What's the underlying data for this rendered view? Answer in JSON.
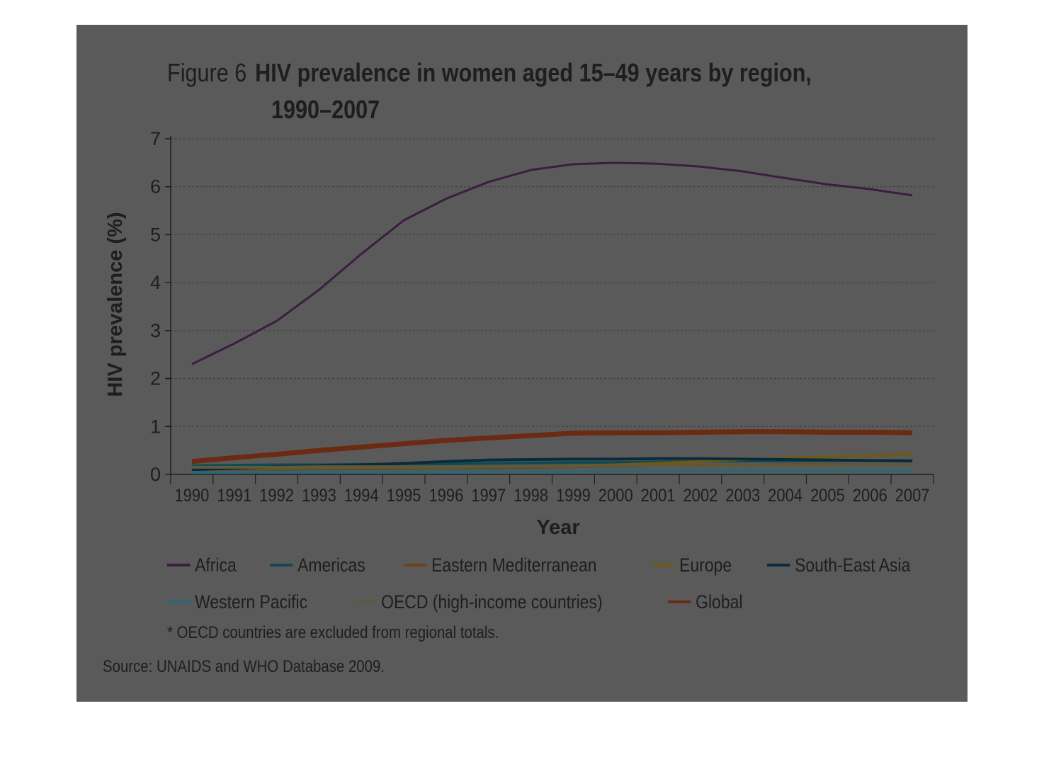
{
  "chart_data": {
    "type": "line",
    "figure_label": "Figure 6",
    "title_line1": "HIV prevalence in women aged 15–49 years by region,",
    "title_line2": "1990–2007",
    "xlabel": "Year",
    "ylabel": "HIV prevalence (%)",
    "ylim": [
      0,
      7
    ],
    "yticks": [
      "0",
      "1",
      "2",
      "3",
      "4",
      "5",
      "6",
      "7"
    ],
    "x": [
      "1990",
      "1991",
      "1992",
      "1993",
      "1994",
      "1995",
      "1996",
      "1997",
      "1998",
      "1999",
      "2000",
      "2001",
      "2002",
      "2003",
      "2004",
      "2005",
      "2006",
      "2007"
    ],
    "grid": true,
    "legend_placement": "bottom",
    "series": [
      {
        "name": "Africa",
        "color": "#3b1d40",
        "values": [
          2.3,
          2.73,
          3.2,
          3.85,
          4.6,
          5.3,
          5.75,
          6.1,
          6.35,
          6.47,
          6.5,
          6.48,
          6.42,
          6.32,
          6.18,
          6.05,
          5.95,
          5.82
        ]
      },
      {
        "name": "Americas",
        "color": "#0d4c52",
        "values": [
          0.18,
          0.19,
          0.2,
          0.2,
          0.21,
          0.21,
          0.22,
          0.23,
          0.24,
          0.25,
          0.25,
          0.26,
          0.27,
          0.28,
          0.28,
          0.29,
          0.29,
          0.29
        ]
      },
      {
        "name": "Eastern Mediterranean",
        "color": "#6b4418",
        "values": [
          0.1,
          0.11,
          0.11,
          0.12,
          0.12,
          0.13,
          0.14,
          0.14,
          0.15,
          0.16,
          0.17,
          0.18,
          0.19,
          0.19,
          0.2,
          0.2,
          0.2,
          0.2
        ]
      },
      {
        "name": "Europe",
        "color": "#6b5a18",
        "values": [
          0.12,
          0.13,
          0.13,
          0.14,
          0.14,
          0.15,
          0.15,
          0.16,
          0.17,
          0.18,
          0.2,
          0.23,
          0.27,
          0.31,
          0.34,
          0.37,
          0.39,
          0.42
        ]
      },
      {
        "name": "South-East Asia",
        "color": "#0d2a3a",
        "values": [
          0.1,
          0.13,
          0.16,
          0.18,
          0.2,
          0.23,
          0.27,
          0.3,
          0.31,
          0.32,
          0.32,
          0.33,
          0.33,
          0.32,
          0.31,
          0.3,
          0.29,
          0.28
        ]
      },
      {
        "name": "Western Pacific",
        "color": "#2f6676",
        "values": [
          0.04,
          0.04,
          0.05,
          0.05,
          0.05,
          0.05,
          0.06,
          0.06,
          0.06,
          0.06,
          0.07,
          0.07,
          0.07,
          0.07,
          0.08,
          0.08,
          0.08,
          0.08
        ]
      },
      {
        "name": "OECD (high-income countries)",
        "color": "#5e5a40",
        "values": [
          0.15,
          0.15,
          0.15,
          0.16,
          0.16,
          0.16,
          0.16,
          0.17,
          0.17,
          0.17,
          0.18,
          0.18,
          0.18,
          0.19,
          0.19,
          0.19,
          0.2,
          0.2
        ]
      },
      {
        "name": "Global",
        "color": "#6b2a12",
        "values": [
          0.27,
          0.35,
          0.42,
          0.5,
          0.57,
          0.64,
          0.71,
          0.76,
          0.81,
          0.86,
          0.87,
          0.87,
          0.88,
          0.89,
          0.89,
          0.88,
          0.88,
          0.87
        ]
      }
    ],
    "note": "* OECD countries are excluded from regional totals.",
    "source": "Source: UNAIDS and WHO Database 2009."
  }
}
